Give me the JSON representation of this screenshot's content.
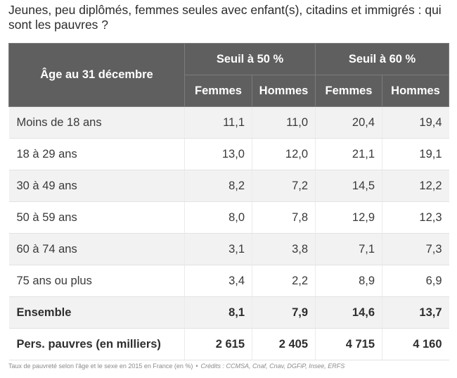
{
  "title": "Jeunes, peu diplômés, femmes seules avec enfant(s), citadins et immigrés : qui sont les pauvres ?",
  "table": {
    "age_header": "Âge au 31 décembre",
    "groups": [
      "Seuil à 50 %",
      "Seuil à 60 %"
    ],
    "subheaders": [
      "Femmes",
      "Hommes",
      "Femmes",
      "Hommes"
    ],
    "rows": [
      {
        "label": "Moins de 18 ans",
        "values": [
          "11,1",
          "11,0",
          "20,4",
          "19,4"
        ]
      },
      {
        "label": "18 à 29 ans",
        "values": [
          "13,0",
          "12,0",
          "21,1",
          "19,1"
        ]
      },
      {
        "label": "30 à 49 ans",
        "values": [
          "8,2",
          "7,2",
          "14,5",
          "12,2"
        ]
      },
      {
        "label": "50 à 59 ans",
        "values": [
          "8,0",
          "7,8",
          "12,9",
          "12,3"
        ]
      },
      {
        "label": "60 à 74 ans",
        "values": [
          "3,1",
          "3,8",
          "7,1",
          "7,3"
        ]
      },
      {
        "label": "75 ans ou plus",
        "values": [
          "3,4",
          "2,2",
          "8,9",
          "6,9"
        ]
      },
      {
        "label": "Ensemble",
        "values": [
          "8,1",
          "7,9",
          "14,6",
          "13,7"
        ]
      },
      {
        "label": "Pers. pauvres (en milliers)",
        "values": [
          "2 615",
          "2 405",
          "4 715",
          "4 160"
        ]
      }
    ]
  },
  "caption": "Taux de pauvreté selon l'âge et le sexe en 2015 en France (en %)",
  "separator": "•",
  "credits": "Crédits : CCMSA, Cnaf, Cnav, DGFiP, Insee, ERFS",
  "colors": {
    "header_bg": "#5f5f5f",
    "stripe": "#f2f2f2"
  }
}
